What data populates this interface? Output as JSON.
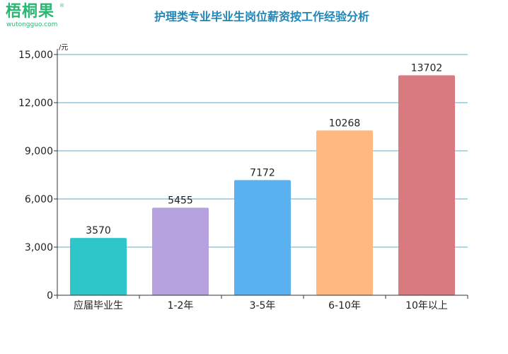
{
  "logo": {
    "name": "梧桐果",
    "reg_mark": "®",
    "url": "wutongguo.com"
  },
  "chart_data": {
    "type": "bar",
    "title": "护理类专业毕业生岗位薪资按工作经验分析",
    "unit_label": "元",
    "categories": [
      "应届毕业生",
      "1-2年",
      "3-5年",
      "6-10年",
      "10年以上"
    ],
    "values": [
      3570,
      5455,
      7172,
      10268,
      13702
    ],
    "value_labels": [
      "3570",
      "5455",
      "7172",
      "10268",
      "13702"
    ],
    "colors": [
      "#2ec7c9",
      "#b6a2de",
      "#5ab1ef",
      "#ffb980",
      "#d87a80"
    ],
    "ylim": [
      0,
      15000
    ],
    "yticks": [
      0,
      3000,
      6000,
      9000,
      12000,
      15000
    ],
    "ytick_labels": [
      "0",
      "3,000",
      "6,000",
      "9,000",
      "12,000",
      "15,000"
    ],
    "grid": true,
    "grid_color": "#5fa8c9",
    "xlabel": "",
    "ylabel": ""
  }
}
